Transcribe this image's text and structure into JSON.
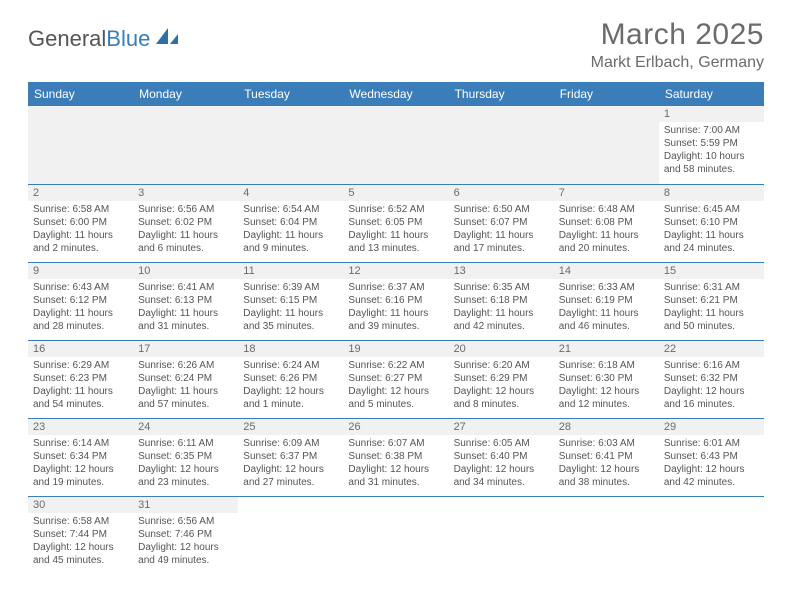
{
  "logo": {
    "text1": "General",
    "text2": "Blue"
  },
  "title": "March 2025",
  "location": "Markt Erlbach, Germany",
  "colors": {
    "header_bg": "#3a7db8",
    "header_fg": "#ffffff",
    "border": "#3a7db8",
    "text": "#555555",
    "daynum_bg": "#f1f1f1",
    "page_bg": "#ffffff"
  },
  "daysOfWeek": [
    "Sunday",
    "Monday",
    "Tuesday",
    "Wednesday",
    "Thursday",
    "Friday",
    "Saturday"
  ],
  "weeks": [
    [
      null,
      null,
      null,
      null,
      null,
      null,
      {
        "n": "1",
        "sr": "Sunrise: 7:00 AM",
        "ss": "Sunset: 5:59 PM",
        "dl": "Daylight: 10 hours and 58 minutes."
      }
    ],
    [
      {
        "n": "2",
        "sr": "Sunrise: 6:58 AM",
        "ss": "Sunset: 6:00 PM",
        "dl": "Daylight: 11 hours and 2 minutes."
      },
      {
        "n": "3",
        "sr": "Sunrise: 6:56 AM",
        "ss": "Sunset: 6:02 PM",
        "dl": "Daylight: 11 hours and 6 minutes."
      },
      {
        "n": "4",
        "sr": "Sunrise: 6:54 AM",
        "ss": "Sunset: 6:04 PM",
        "dl": "Daylight: 11 hours and 9 minutes."
      },
      {
        "n": "5",
        "sr": "Sunrise: 6:52 AM",
        "ss": "Sunset: 6:05 PM",
        "dl": "Daylight: 11 hours and 13 minutes."
      },
      {
        "n": "6",
        "sr": "Sunrise: 6:50 AM",
        "ss": "Sunset: 6:07 PM",
        "dl": "Daylight: 11 hours and 17 minutes."
      },
      {
        "n": "7",
        "sr": "Sunrise: 6:48 AM",
        "ss": "Sunset: 6:08 PM",
        "dl": "Daylight: 11 hours and 20 minutes."
      },
      {
        "n": "8",
        "sr": "Sunrise: 6:45 AM",
        "ss": "Sunset: 6:10 PM",
        "dl": "Daylight: 11 hours and 24 minutes."
      }
    ],
    [
      {
        "n": "9",
        "sr": "Sunrise: 6:43 AM",
        "ss": "Sunset: 6:12 PM",
        "dl": "Daylight: 11 hours and 28 minutes."
      },
      {
        "n": "10",
        "sr": "Sunrise: 6:41 AM",
        "ss": "Sunset: 6:13 PM",
        "dl": "Daylight: 11 hours and 31 minutes."
      },
      {
        "n": "11",
        "sr": "Sunrise: 6:39 AM",
        "ss": "Sunset: 6:15 PM",
        "dl": "Daylight: 11 hours and 35 minutes."
      },
      {
        "n": "12",
        "sr": "Sunrise: 6:37 AM",
        "ss": "Sunset: 6:16 PM",
        "dl": "Daylight: 11 hours and 39 minutes."
      },
      {
        "n": "13",
        "sr": "Sunrise: 6:35 AM",
        "ss": "Sunset: 6:18 PM",
        "dl": "Daylight: 11 hours and 42 minutes."
      },
      {
        "n": "14",
        "sr": "Sunrise: 6:33 AM",
        "ss": "Sunset: 6:19 PM",
        "dl": "Daylight: 11 hours and 46 minutes."
      },
      {
        "n": "15",
        "sr": "Sunrise: 6:31 AM",
        "ss": "Sunset: 6:21 PM",
        "dl": "Daylight: 11 hours and 50 minutes."
      }
    ],
    [
      {
        "n": "16",
        "sr": "Sunrise: 6:29 AM",
        "ss": "Sunset: 6:23 PM",
        "dl": "Daylight: 11 hours and 54 minutes."
      },
      {
        "n": "17",
        "sr": "Sunrise: 6:26 AM",
        "ss": "Sunset: 6:24 PM",
        "dl": "Daylight: 11 hours and 57 minutes."
      },
      {
        "n": "18",
        "sr": "Sunrise: 6:24 AM",
        "ss": "Sunset: 6:26 PM",
        "dl": "Daylight: 12 hours and 1 minute."
      },
      {
        "n": "19",
        "sr": "Sunrise: 6:22 AM",
        "ss": "Sunset: 6:27 PM",
        "dl": "Daylight: 12 hours and 5 minutes."
      },
      {
        "n": "20",
        "sr": "Sunrise: 6:20 AM",
        "ss": "Sunset: 6:29 PM",
        "dl": "Daylight: 12 hours and 8 minutes."
      },
      {
        "n": "21",
        "sr": "Sunrise: 6:18 AM",
        "ss": "Sunset: 6:30 PM",
        "dl": "Daylight: 12 hours and 12 minutes."
      },
      {
        "n": "22",
        "sr": "Sunrise: 6:16 AM",
        "ss": "Sunset: 6:32 PM",
        "dl": "Daylight: 12 hours and 16 minutes."
      }
    ],
    [
      {
        "n": "23",
        "sr": "Sunrise: 6:14 AM",
        "ss": "Sunset: 6:34 PM",
        "dl": "Daylight: 12 hours and 19 minutes."
      },
      {
        "n": "24",
        "sr": "Sunrise: 6:11 AM",
        "ss": "Sunset: 6:35 PM",
        "dl": "Daylight: 12 hours and 23 minutes."
      },
      {
        "n": "25",
        "sr": "Sunrise: 6:09 AM",
        "ss": "Sunset: 6:37 PM",
        "dl": "Daylight: 12 hours and 27 minutes."
      },
      {
        "n": "26",
        "sr": "Sunrise: 6:07 AM",
        "ss": "Sunset: 6:38 PM",
        "dl": "Daylight: 12 hours and 31 minutes."
      },
      {
        "n": "27",
        "sr": "Sunrise: 6:05 AM",
        "ss": "Sunset: 6:40 PM",
        "dl": "Daylight: 12 hours and 34 minutes."
      },
      {
        "n": "28",
        "sr": "Sunrise: 6:03 AM",
        "ss": "Sunset: 6:41 PM",
        "dl": "Daylight: 12 hours and 38 minutes."
      },
      {
        "n": "29",
        "sr": "Sunrise: 6:01 AM",
        "ss": "Sunset: 6:43 PM",
        "dl": "Daylight: 12 hours and 42 minutes."
      }
    ],
    [
      {
        "n": "30",
        "sr": "Sunrise: 6:58 AM",
        "ss": "Sunset: 7:44 PM",
        "dl": "Daylight: 12 hours and 45 minutes."
      },
      {
        "n": "31",
        "sr": "Sunrise: 6:56 AM",
        "ss": "Sunset: 7:46 PM",
        "dl": "Daylight: 12 hours and 49 minutes."
      },
      null,
      null,
      null,
      null,
      null
    ]
  ]
}
